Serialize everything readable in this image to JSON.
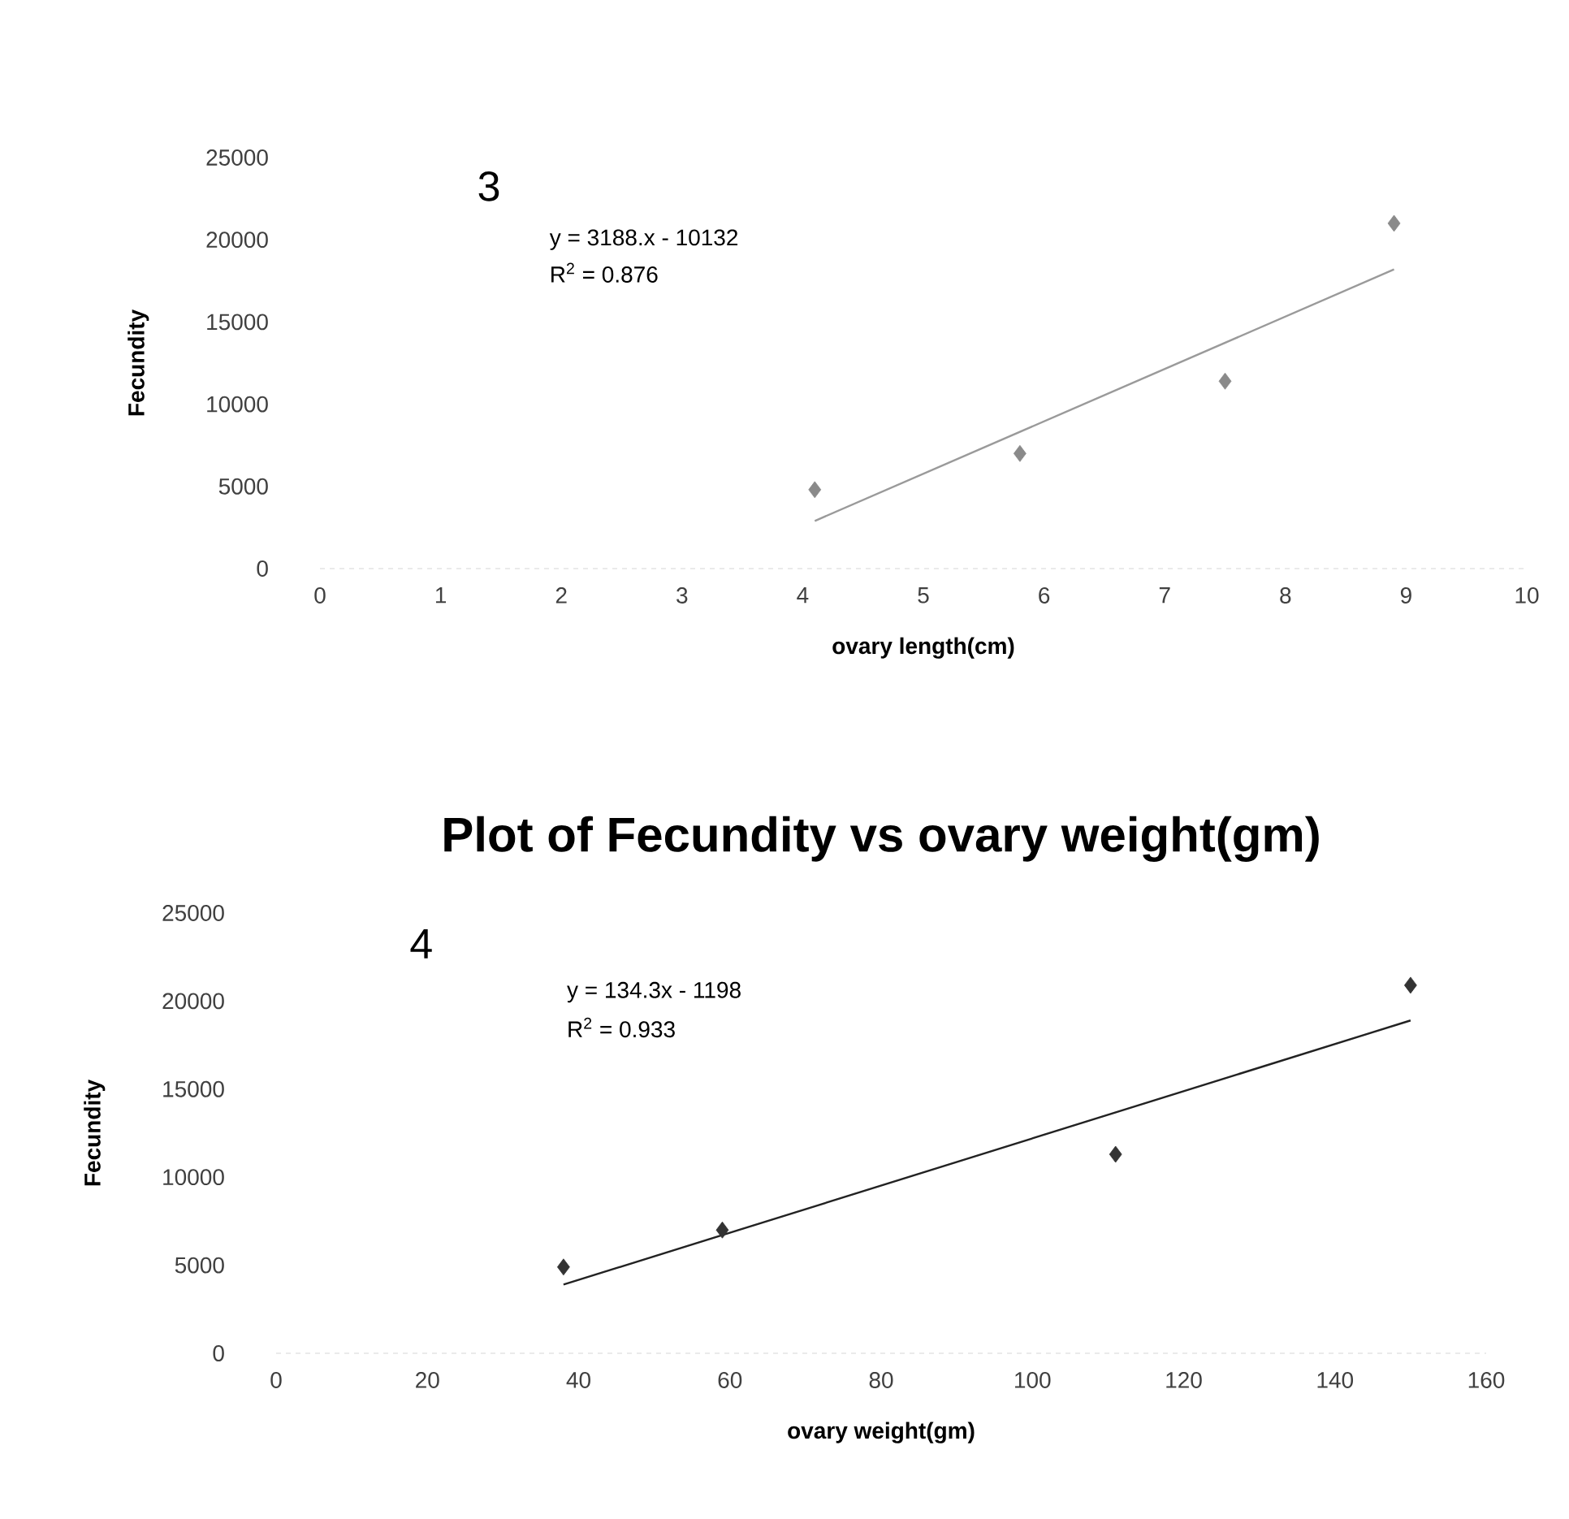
{
  "chart_data": [
    {
      "type": "scatter",
      "xlabel": "ovary length(cm)",
      "ylabel": "Fecundity",
      "xlim": [
        0,
        10
      ],
      "ylim": [
        0,
        25000
      ],
      "xticks": [
        0,
        1,
        2,
        3,
        4,
        5,
        6,
        7,
        8,
        9,
        10
      ],
      "yticks": [
        0,
        5000,
        10000,
        15000,
        20000,
        25000
      ],
      "marker": "diamond",
      "annotations": [
        "3",
        "y = 3188.x - 10132",
        "R$^{2}$ = 0.876"
      ],
      "series": [
        {
          "color": "#8a8a8a",
          "x": [
            4.1,
            5.8,
            7.5,
            8.9
          ],
          "values": [
            4800,
            7000,
            11400,
            21000
          ]
        },
        {
          "type": "line",
          "marker": "none",
          "color": "#9a9a9a",
          "x": [
            4.1,
            8.9
          ],
          "values": [
            2900,
            18200
          ]
        }
      ]
    },
    {
      "type": "scatter",
      "title": "Plot of Fecundity vs ovary weight(gm)",
      "xlabel": "ovary weight(gm)",
      "ylabel": "Fecundity",
      "xlim": [
        0,
        160
      ],
      "ylim": [
        0,
        25000
      ],
      "xticks": [
        0,
        20,
        40,
        60,
        80,
        100,
        120,
        140,
        160
      ],
      "yticks": [
        0,
        5000,
        10000,
        15000,
        20000,
        25000
      ],
      "marker": "diamond",
      "annotations": [
        "4",
        "y = 134.3x - 1198",
        "R$^{2}$ = 0.933"
      ],
      "series": [
        {
          "color": "#333333",
          "x": [
            38,
            59,
            111,
            150
          ],
          "values": [
            4900,
            7000,
            11300,
            20900
          ]
        },
        {
          "type": "line",
          "marker": "none",
          "color": "#222222",
          "x": [
            38,
            150
          ],
          "values": [
            3900,
            18900
          ]
        }
      ]
    }
  ]
}
